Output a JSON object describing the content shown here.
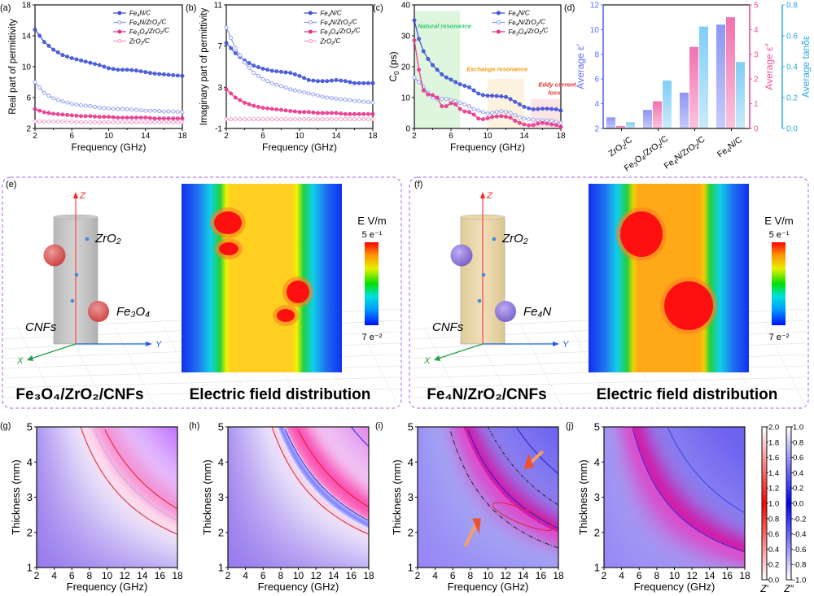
{
  "chart_data": [
    {
      "panel": "a",
      "type": "line",
      "xlabel": "Frequency (GHz)",
      "ylabel": "Real part of permittivity",
      "xlim": [
        2,
        18
      ],
      "ylim": [
        2,
        18
      ],
      "xticks": [
        2,
        6,
        10,
        14,
        18
      ],
      "yticks": [
        2,
        6,
        10,
        14,
        18
      ],
      "legend": "top-right",
      "x": [
        2,
        3,
        4,
        5,
        6,
        7,
        8,
        9,
        10,
        11,
        12,
        13,
        14,
        15,
        16,
        17,
        18
      ],
      "series": [
        {
          "name": "Fe4N/C",
          "color": "#3b4fd8",
          "filled": true,
          "values": [
            14.8,
            13.2,
            12.2,
            11.5,
            11.1,
            10.8,
            10.5,
            10.2,
            9.8,
            9.6,
            9.6,
            9.5,
            9.3,
            9.1,
            9.0,
            8.9,
            8.8
          ]
        },
        {
          "name": "Fe4N/ZrO2/C",
          "color": "#8e9cf0",
          "filled": false,
          "values": [
            8.0,
            6.6,
            5.9,
            5.5,
            5.2,
            5.0,
            4.9,
            4.7,
            4.6,
            4.5,
            4.5,
            4.4,
            4.3,
            4.3,
            4.2,
            4.2,
            4.1
          ]
        },
        {
          "name": "Fe3O4/ZrO2/C",
          "color": "#e8338a",
          "filled": true,
          "values": [
            4.5,
            4.1,
            3.9,
            3.8,
            3.7,
            3.6,
            3.6,
            3.5,
            3.5,
            3.4,
            3.4,
            3.4,
            3.4,
            3.3,
            3.3,
            3.3,
            3.3
          ]
        },
        {
          "name": "ZrO2/C",
          "color": "#f29bc9",
          "filled": false,
          "values": [
            2.9,
            2.9,
            2.9,
            2.9,
            2.9,
            2.8,
            2.8,
            2.8,
            2.8,
            2.8,
            2.8,
            2.8,
            2.8,
            2.8,
            2.8,
            2.8,
            2.8
          ]
        }
      ]
    },
    {
      "panel": "b",
      "type": "line",
      "xlabel": "Frequency (GHz)",
      "ylabel": "Imaginary part of permittivity",
      "xlim": [
        2,
        18
      ],
      "ylim": [
        -1,
        11
      ],
      "xticks": [
        2,
        6,
        10,
        14,
        18
      ],
      "yticks": [
        -1,
        3,
        7,
        11
      ],
      "legend": "top-right",
      "x": [
        2,
        3,
        4,
        5,
        6,
        7,
        8,
        9,
        10,
        11,
        12,
        13,
        14,
        15,
        16,
        17,
        18
      ],
      "series": [
        {
          "name": "Fe4N/C",
          "color": "#3b4fd8",
          "filled": true,
          "values": [
            7.3,
            6.3,
            5.6,
            5.1,
            4.8,
            4.6,
            4.5,
            4.4,
            4.1,
            3.7,
            3.6,
            3.6,
            3.7,
            3.6,
            3.4,
            3.4,
            3.4
          ]
        },
        {
          "name": "Fe4N/ZrO2/C",
          "color": "#8e9cf0",
          "filled": false,
          "values": [
            8.8,
            6.8,
            5.4,
            4.4,
            3.8,
            3.4,
            3.1,
            2.8,
            2.6,
            2.4,
            2.2,
            2.0,
            1.9,
            1.8,
            1.7,
            1.6,
            1.5
          ]
        },
        {
          "name": "Fe3O4/ZrO2/C",
          "color": "#e8338a",
          "filled": true,
          "values": [
            2.8,
            2.0,
            1.5,
            1.2,
            1.0,
            0.9,
            0.8,
            0.7,
            0.6,
            0.6,
            0.5,
            0.5,
            0.5,
            0.4,
            0.4,
            0.4,
            0.4
          ]
        },
        {
          "name": "ZrO2/C",
          "color": "#f29bc9",
          "filled": false,
          "values": [
            -0.1,
            -0.1,
            -0.1,
            -0.1,
            -0.1,
            -0.1,
            -0.1,
            -0.1,
            -0.1,
            -0.1,
            -0.1,
            -0.1,
            -0.1,
            -0.1,
            -0.1,
            -0.1,
            -0.1
          ]
        }
      ]
    },
    {
      "panel": "c",
      "type": "line",
      "xlabel": "Frequency (GHz)",
      "ylabel": "C0 (ps)",
      "xlim": [
        2,
        18
      ],
      "ylim": [
        0,
        40
      ],
      "xticks": [
        2,
        6,
        10,
        14,
        18
      ],
      "yticks": [
        0,
        10,
        20,
        30,
        40
      ],
      "legend": "top-right",
      "regions": [
        {
          "label": "Natural resonance",
          "x": [
            2,
            7
          ],
          "ymax": 38,
          "fill": "#d8f5d8",
          "text_color": "#2ecc71"
        },
        {
          "label": "Exchange resonance",
          "x": [
            10,
            14
          ],
          "ymax": 16,
          "fill": "#fdf0d8",
          "text_color": "#f39c12"
        },
        {
          "label": "Eddy current loss",
          "x": [
            14.7,
            18
          ],
          "ymax": 9.5,
          "fill": "#fde0e0",
          "text_color": "#e82c2c"
        }
      ],
      "x": [
        2,
        2.5,
        3,
        3.5,
        4,
        4.5,
        5,
        5.5,
        6,
        6.5,
        7,
        7.5,
        8,
        8.5,
        9,
        9.5,
        10,
        10.5,
        11,
        11.5,
        12,
        12.5,
        13,
        13.5,
        14,
        14.5,
        15,
        15.5,
        16,
        16.5,
        17,
        17.5,
        18
      ],
      "series": [
        {
          "name": "Fe4N/C",
          "color": "#3b4fd8",
          "filled": true,
          "values": [
            35,
            29,
            25,
            22.5,
            20.5,
            19,
            17.5,
            16.5,
            15.8,
            15,
            14.3,
            13.8,
            13.3,
            12.3,
            11.3,
            10.8,
            10.6,
            10.6,
            10.5,
            10.4,
            10.2,
            9.5,
            8.6,
            7.8,
            7.0,
            6.5,
            6.2,
            6.3,
            6.4,
            6.4,
            6.3,
            6.2,
            5.8
          ]
        },
        {
          "name": "Fe4N/ZrO2/C",
          "color": "#8e9cf0",
          "filled": false,
          "values": [
            16.5,
            15,
            13.5,
            11.5,
            10,
            9.5,
            9.6,
            9.6,
            9.2,
            8.8,
            8.3,
            7.8,
            7.2,
            6.3,
            5.8,
            5.3,
            4.8,
            5.0,
            5.4,
            5.6,
            5.4,
            5.0,
            4.3,
            3.6,
            3.2,
            3.0,
            2.8,
            2.7,
            2.6,
            2.6,
            2.5,
            2.2,
            1.8
          ]
        },
        {
          "name": "Fe3O4/ZrO2/C",
          "color": "#e8338a",
          "filled": true,
          "values": [
            28.5,
            19,
            12.3,
            11,
            10.8,
            10,
            7.2,
            7.2,
            8.2,
            7.8,
            6.3,
            5.5,
            5.3,
            4.5,
            3.2,
            3.0,
            3.3,
            3.7,
            3.9,
            4.0,
            3.8,
            3.5,
            2.5,
            1.8,
            1.3,
            1.0,
            1.1,
            1.6,
            1.8,
            1.6,
            1.3,
            1.1,
            0.5
          ]
        }
      ]
    },
    {
      "panel": "d",
      "type": "bar",
      "categories": [
        "ZrO2/C",
        "Fe3O4/ZrO2/C",
        "Fe4N/ZrO2/C",
        "Fe4N/C"
      ],
      "axes": [
        {
          "label": "Average ε′",
          "side": "left",
          "color": "#5b6ef5",
          "ylim": [
            2,
            12
          ],
          "ticks": [
            2,
            4,
            6,
            8,
            10,
            12
          ]
        },
        {
          "label": "Average ε″",
          "side": "right",
          "color": "#f0529c",
          "ylim": [
            0,
            5
          ],
          "ticks": [
            0,
            1,
            2,
            3,
            4,
            5
          ]
        },
        {
          "label": "Average tanδε",
          "side": "right-outer",
          "color": "#2aa8e8",
          "ylim": [
            0.0,
            0.8
          ],
          "ticks": [
            0.0,
            0.2,
            0.4,
            0.6,
            0.8
          ]
        }
      ],
      "series": [
        {
          "name": "Average ε′",
          "axis": 0,
          "color_top": "#8c96f2",
          "color_bottom": "#c6ccfa",
          "values": [
            2.9,
            3.5,
            4.9,
            10.4
          ]
        },
        {
          "name": "Average ε″",
          "axis": 1,
          "color_top": "#f271b0",
          "color_bottom": "#fbc4de",
          "values": [
            0.1,
            1.1,
            3.3,
            4.5
          ]
        },
        {
          "name": "Average tanδε",
          "axis": 2,
          "color_top": "#7fcdf5",
          "color_bottom": "#c9ebfb",
          "values": [
            0.04,
            0.31,
            0.66,
            0.43
          ]
        }
      ]
    },
    {
      "panel": "g",
      "type": "heatmap",
      "xlabel": "Frequency (GHz)",
      "ylabel": "Thickness (mm)",
      "xlim": [
        2,
        18
      ],
      "ylim": [
        1,
        5
      ],
      "xticks": [
        2,
        4,
        6,
        8,
        10,
        12,
        14,
        16,
        18
      ],
      "yticks": [
        1,
        2,
        3,
        4,
        5
      ],
      "band_center_k": 39,
      "band_strength": 0.35,
      "band_tone": "white-red"
    },
    {
      "panel": "h",
      "type": "heatmap",
      "xlabel": "Frequency (GHz)",
      "ylabel": "Thickness (mm)",
      "xlim": [
        2,
        18
      ],
      "ylim": [
        1,
        5
      ],
      "xticks": [
        2,
        4,
        6,
        8,
        10,
        12,
        14,
        16,
        18
      ],
      "yticks": [
        1,
        2,
        3,
        4,
        5
      ],
      "band_center_k": 40,
      "band_strength": 0.55,
      "band_tone": "red-blue"
    },
    {
      "panel": "i",
      "type": "heatmap",
      "xlabel": "Frequency (GHz)",
      "ylabel": "Thickness (mm)",
      "xlim": [
        2,
        18
      ],
      "ylim": [
        1,
        5
      ],
      "xticks": [
        2,
        4,
        6,
        8,
        10,
        12,
        14,
        16,
        18
      ],
      "yticks": [
        1,
        2,
        3,
        4,
        5
      ],
      "band_center_k": 36,
      "band_strength": 0.8,
      "band_tone": "purple"
    },
    {
      "panel": "j",
      "type": "heatmap",
      "xlabel": "Frequency (GHz)",
      "ylabel": "Thickness (mm)",
      "xlim": [
        2,
        18
      ],
      "ylim": [
        1,
        5
      ],
      "xticks": [
        2,
        4,
        6,
        8,
        10,
        12,
        14,
        16,
        18
      ],
      "yticks": [
        1,
        2,
        3,
        4,
        5
      ],
      "band_center_k": 26,
      "band_strength": 0.9,
      "band_tone": "purple"
    },
    {
      "panel": "colorbars-gj",
      "type": "colorbar",
      "bars": [
        {
          "label": "Z′",
          "range": [
            0.0,
            2.0
          ],
          "ticks": [
            "2.0",
            "1.8",
            "1.6",
            "1.4",
            "1.2",
            "1.0",
            "0.8",
            "0.6",
            "0.4",
            "0.2",
            "0.0"
          ],
          "color": "#ff0000"
        },
        {
          "label": "Z″",
          "range": [
            -1.0,
            1.0
          ],
          "ticks": [
            "1.0",
            "0.8",
            "0.6",
            "0.4",
            "0.2",
            "0.0",
            "-0.2",
            "-0.4",
            "-0.6",
            "-0.8",
            "-1.0"
          ],
          "color": "#0000ff"
        }
      ]
    }
  ],
  "panel_labels": {
    "a": "(a)",
    "b": "(b)",
    "c": "(c)",
    "d": "(d)",
    "e": "(e)",
    "f": "(f)",
    "g": "(g)",
    "h": "(h)",
    "i": "(i)",
    "j": "(j)"
  },
  "sim_panels": [
    {
      "id": "e",
      "fiber_color": "#c8c8c8",
      "particle_color": "#e04848",
      "labels": {
        "z": "Z",
        "x": "X",
        "y": "Y",
        "zro2": "ZrO₂",
        "particle": "Fe₃O₄",
        "cnfs": "CNFs"
      },
      "caption_left": "Fe₃O₄/ZrO₂/CNFs",
      "caption_right": "Electric field distribution",
      "colorbar": {
        "unit": "E V/m",
        "max": "5 e⁻¹",
        "min": "7 e⁻²"
      }
    },
    {
      "id": "f",
      "fiber_color": "#ead7a8",
      "particle_color": "#8a6be0",
      "labels": {
        "z": "Z",
        "x": "X",
        "y": "Y",
        "zro2": "ZrO₂",
        "particle": "Fe₄N",
        "cnfs": "CNFs"
      },
      "caption_left": "Fe₄N/ZrO₂/CNFs",
      "caption_right": "Electric field distribution",
      "colorbar": {
        "unit": "E V/m",
        "max": "5 e⁻¹",
        "min": "7 e⁻²"
      }
    }
  ]
}
